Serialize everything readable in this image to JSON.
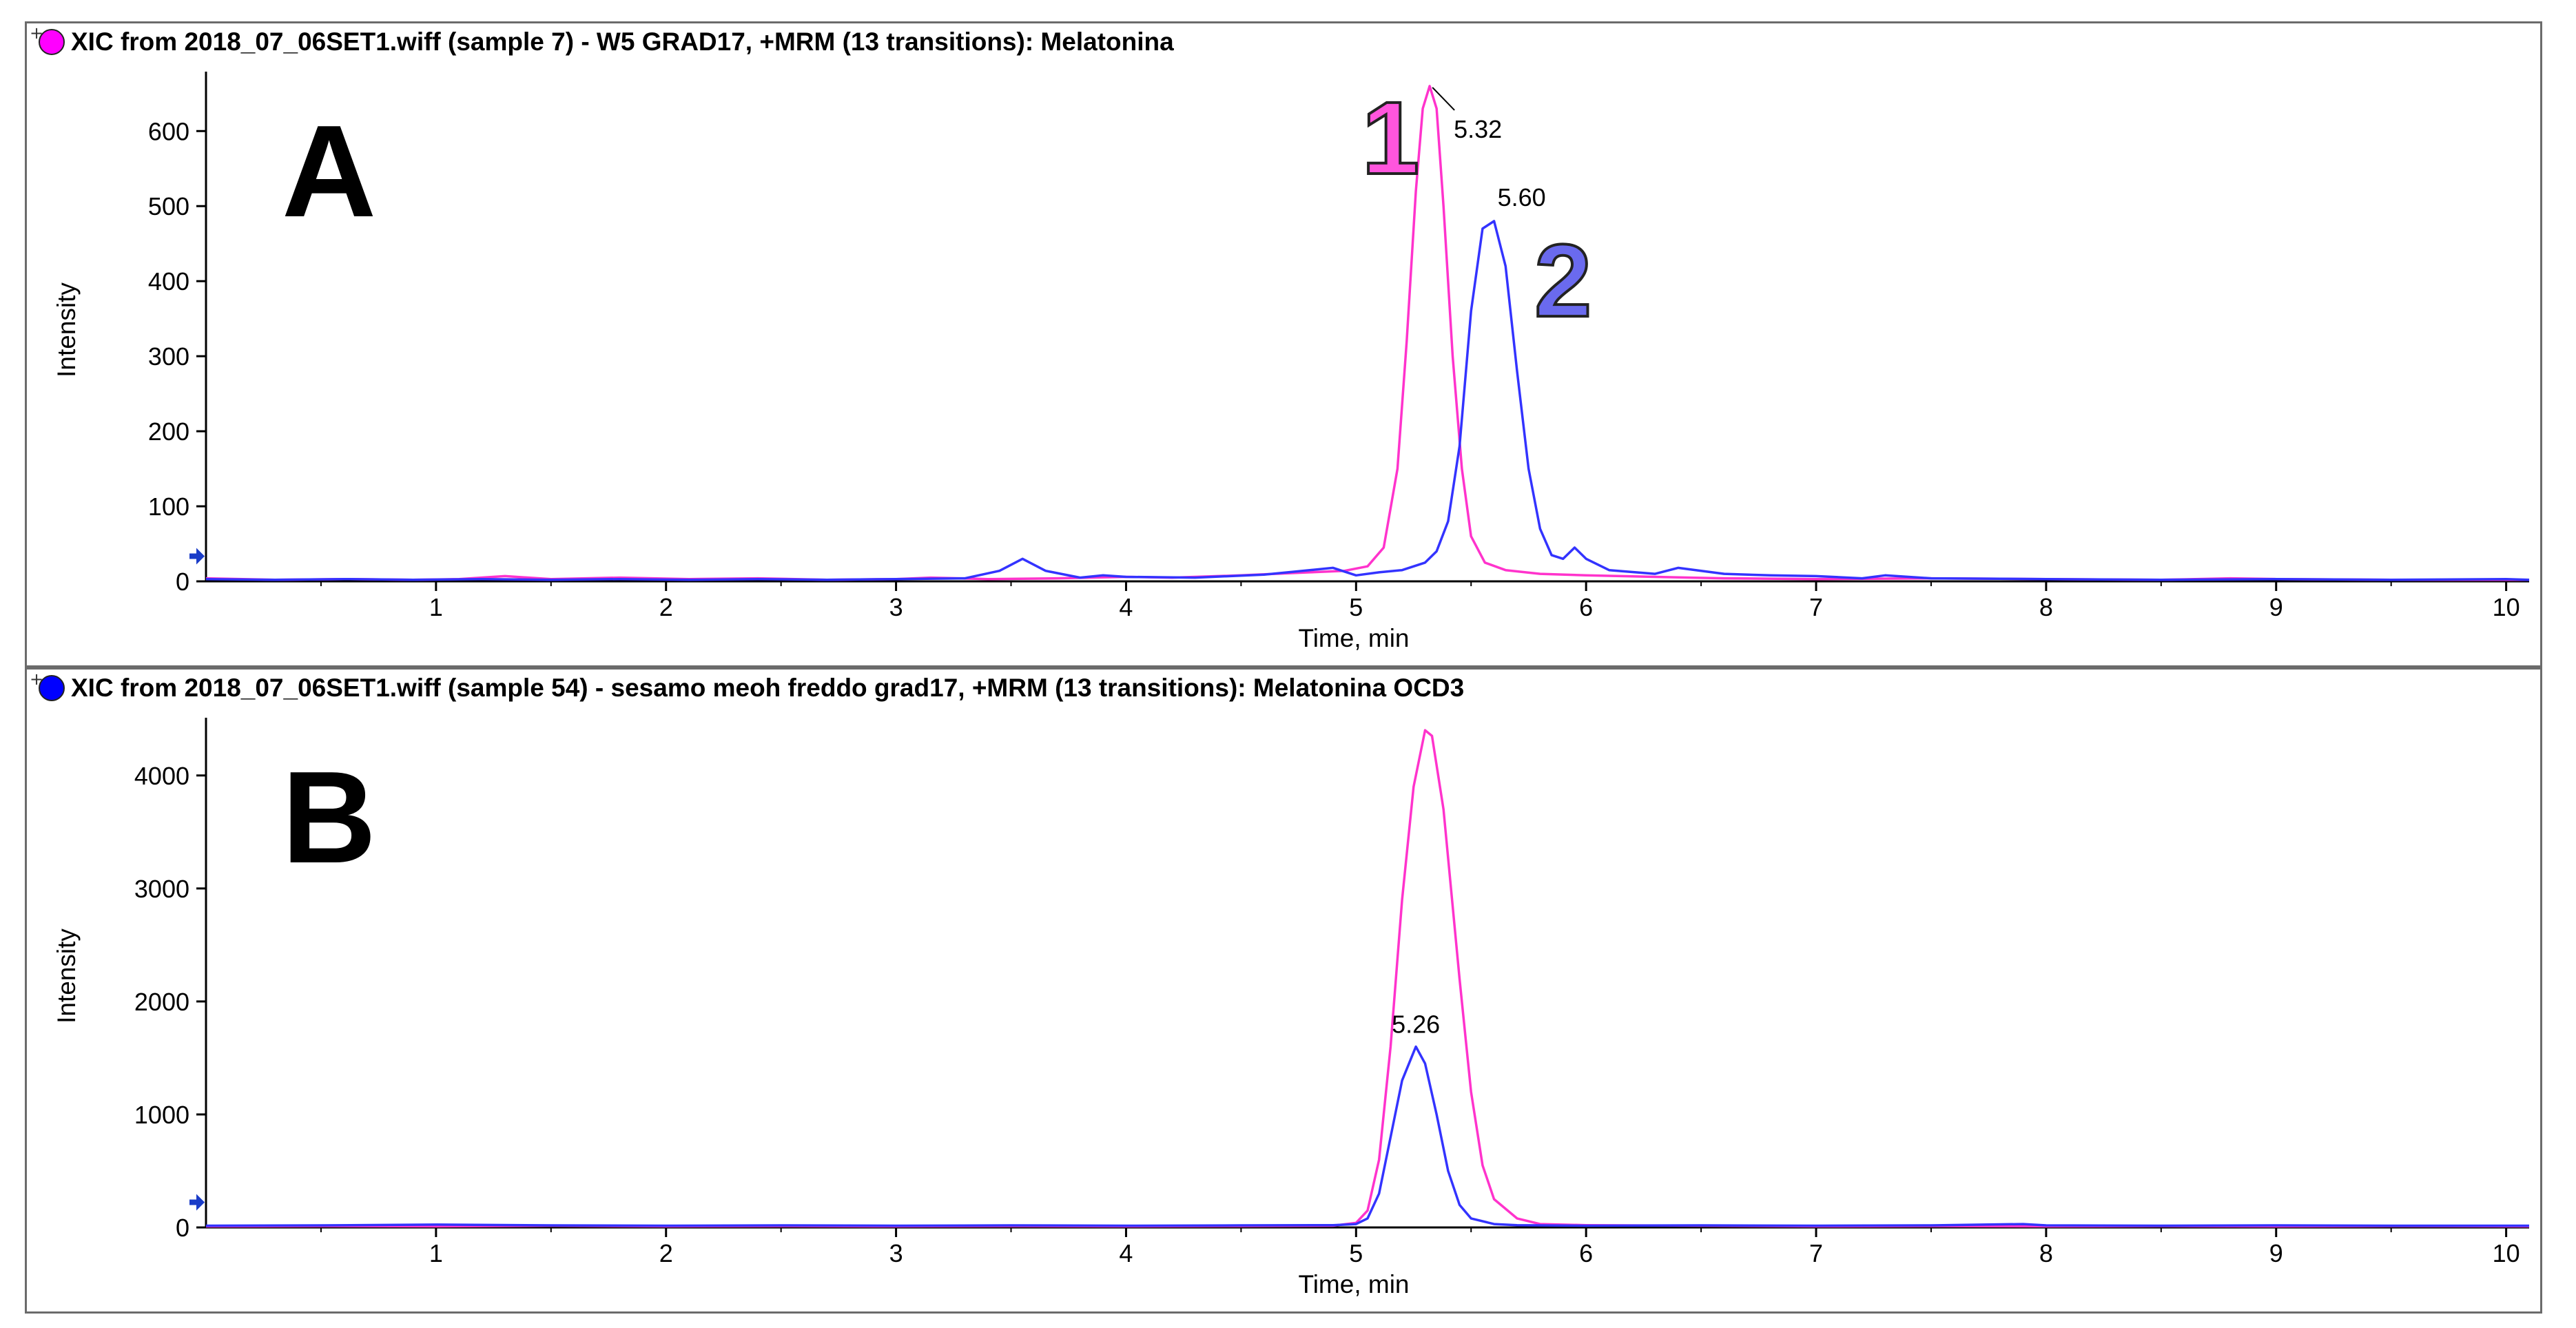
{
  "chart_data": [
    {
      "type": "line",
      "panel_label": "A",
      "title": "XIC from 2018_07_06SET1.wiff (sample 7) - W5 GRAD17, +MRM (13 transitions): Melatonina",
      "legend_marker_color": "#ff00ff",
      "xlabel": "Time, min",
      "ylabel": "Intensity",
      "xlim": [
        0,
        10.1
      ],
      "ylim": [
        0,
        670
      ],
      "xticks": [
        1,
        2,
        3,
        4,
        5,
        6,
        7,
        8,
        9,
        10
      ],
      "yticks": [
        0,
        100,
        200,
        300,
        400,
        500,
        600
      ],
      "series": [
        {
          "color": "#ff33cc",
          "x": [
            0,
            0.3,
            0.6,
            0.9,
            1.1,
            1.3,
            1.5,
            1.8,
            2.1,
            2.4,
            2.7,
            3.0,
            3.15,
            3.4,
            3.7,
            4.0,
            4.2,
            4.5,
            4.8,
            4.95,
            5.05,
            5.12,
            5.18,
            5.22,
            5.26,
            5.29,
            5.32,
            5.35,
            5.38,
            5.42,
            5.46,
            5.5,
            5.56,
            5.65,
            5.8,
            6.0,
            6.3,
            6.6,
            7.0,
            7.5,
            8.0,
            8.5,
            8.8,
            9.0,
            9.5,
            10.1
          ],
          "y": [
            4,
            2,
            3,
            2,
            3,
            7,
            3,
            5,
            3,
            4,
            2,
            3,
            5,
            3,
            4,
            6,
            5,
            8,
            12,
            14,
            20,
            45,
            150,
            320,
            520,
            630,
            660,
            630,
            500,
            300,
            150,
            60,
            25,
            15,
            10,
            8,
            6,
            4,
            3,
            4,
            3,
            2,
            4,
            3,
            2,
            2
          ]
        },
        {
          "color": "#3333ff",
          "x": [
            0,
            0.3,
            0.6,
            0.9,
            1.2,
            1.5,
            1.8,
            2.1,
            2.4,
            2.7,
            3.0,
            3.3,
            3.45,
            3.55,
            3.65,
            3.8,
            3.9,
            4.0,
            4.3,
            4.6,
            4.9,
            5.0,
            5.1,
            5.2,
            5.3,
            5.35,
            5.4,
            5.45,
            5.5,
            5.55,
            5.6,
            5.65,
            5.7,
            5.75,
            5.8,
            5.85,
            5.9,
            5.95,
            6.0,
            6.1,
            6.3,
            6.4,
            6.6,
            6.8,
            7.0,
            7.2,
            7.3,
            7.5,
            8.0,
            8.5,
            9.0,
            9.5,
            10.0,
            10.1
          ],
          "y": [
            3,
            2,
            3,
            2,
            3,
            2,
            3,
            2,
            3,
            2,
            3,
            4,
            14,
            30,
            14,
            5,
            8,
            6,
            5,
            9,
            18,
            8,
            12,
            15,
            25,
            40,
            80,
            180,
            360,
            470,
            480,
            420,
            280,
            150,
            70,
            35,
            30,
            45,
            30,
            15,
            10,
            18,
            10,
            8,
            7,
            4,
            8,
            4,
            3,
            2,
            3,
            2,
            3,
            2
          ]
        }
      ],
      "annotations": [
        {
          "text": "5.32",
          "x": 5.32,
          "y": 660
        },
        {
          "text": "5.60",
          "x": 5.6,
          "y": 480
        },
        {
          "text": "1",
          "x": 5.15,
          "y": 580
        },
        {
          "text": "2",
          "x": 5.9,
          "y": 390
        }
      ]
    },
    {
      "type": "line",
      "panel_label": "B",
      "title": "XIC from 2018_07_06SET1.wiff (sample 54) - sesamo meoh freddo grad17, +MRM (13 transitions): Melatonina OCD3",
      "legend_marker_color": "#0000ff",
      "xlabel": "Time, min",
      "ylabel": "Intensity",
      "xlim": [
        0,
        10.1
      ],
      "ylim": [
        0,
        4450
      ],
      "xticks": [
        1,
        2,
        3,
        4,
        5,
        6,
        7,
        8,
        9,
        10
      ],
      "yticks": [
        0,
        1000,
        2000,
        3000,
        4000
      ],
      "series": [
        {
          "color": "#ff33cc",
          "x": [
            0,
            0.5,
            1.0,
            1.5,
            2.0,
            2.5,
            3.0,
            3.5,
            4.0,
            4.5,
            4.9,
            5.0,
            5.05,
            5.1,
            5.15,
            5.2,
            5.25,
            5.3,
            5.33,
            5.38,
            5.45,
            5.5,
            5.55,
            5.6,
            5.7,
            5.8,
            6.0,
            6.5,
            7.0,
            7.5,
            8.0,
            8.5,
            9.0,
            9.5,
            10.1
          ],
          "y": [
            10,
            12,
            10,
            15,
            10,
            12,
            10,
            12,
            10,
            12,
            15,
            40,
            150,
            600,
            1600,
            2900,
            3900,
            4400,
            4350,
            3700,
            2200,
            1200,
            550,
            250,
            80,
            30,
            20,
            15,
            10,
            12,
            10,
            12,
            10,
            12,
            10
          ]
        },
        {
          "color": "#3333ff",
          "x": [
            0,
            0.5,
            1.0,
            1.5,
            2.0,
            2.5,
            3.0,
            3.5,
            4.0,
            4.5,
            4.9,
            5.0,
            5.05,
            5.1,
            5.15,
            5.2,
            5.26,
            5.3,
            5.35,
            5.4,
            5.45,
            5.5,
            5.6,
            5.7,
            6.0,
            6.5,
            7.0,
            7.5,
            7.9,
            8.0,
            8.5,
            9.0,
            9.5,
            10.1
          ],
          "y": [
            15,
            18,
            25,
            18,
            15,
            18,
            15,
            18,
            15,
            18,
            20,
            30,
            80,
            300,
            800,
            1300,
            1600,
            1450,
            1000,
            500,
            200,
            80,
            30,
            20,
            15,
            18,
            15,
            18,
            30,
            18,
            15,
            18,
            15,
            15
          ]
        }
      ],
      "annotations": [
        {
          "text": "5.26",
          "x": 5.26,
          "y": 1600
        }
      ]
    }
  ]
}
